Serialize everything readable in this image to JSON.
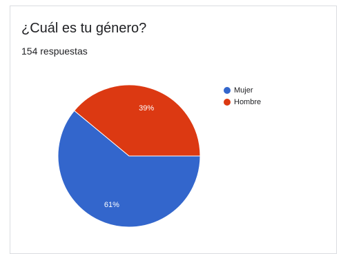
{
  "header": {
    "title": "¿Cuál es tu género?",
    "responses": "154 respuestas"
  },
  "colors": {
    "Mujer": "#3366cc",
    "Hombre": "#dc3912"
  },
  "chart_data": {
    "type": "pie",
    "title": "¿Cuál es tu género?",
    "total_responses": 154,
    "categories": [
      "Mujer",
      "Hombre"
    ],
    "values": [
      61,
      39
    ],
    "labels": [
      "61%",
      "39%"
    ],
    "legend_position": "top-right"
  }
}
